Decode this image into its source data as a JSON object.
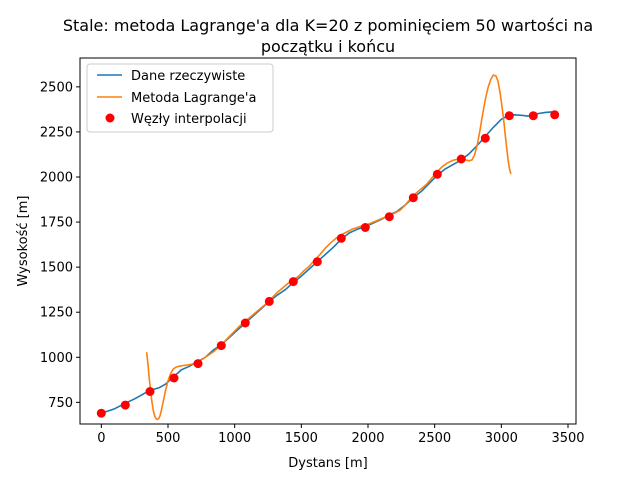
{
  "chart_data": {
    "type": "line",
    "title_line1": "Stale: metoda Lagrange'a dla K=20 z pominięciem 50 wartości na",
    "title_line2": "początku i końcu",
    "xlabel": "Dystans [m]",
    "ylabel": "Wysokość [m]",
    "xlim": [
      -160,
      3560
    ],
    "ylim": [
      630,
      2660
    ],
    "xticks": [
      0,
      500,
      1000,
      1500,
      2000,
      2500,
      3000,
      3500
    ],
    "yticks": [
      750,
      1000,
      1250,
      1500,
      1750,
      2000,
      2250,
      2500
    ],
    "grid": false,
    "legend": "top-left",
    "colors": {
      "real": "#1f77b4",
      "lagrange": "#ff7f0e",
      "nodes": "#ff0000"
    },
    "series": [
      {
        "name": "Dane rzeczywiste",
        "kind": "line",
        "x": [
          0,
          100,
          180,
          250,
          300,
          360,
          430,
          480,
          540,
          600,
          660,
          720,
          780,
          840,
          900,
          960,
          1020,
          1080,
          1140,
          1200,
          1260,
          1320,
          1380,
          1440,
          1500,
          1560,
          1620,
          1680,
          1740,
          1800,
          1860,
          1920,
          1980,
          2040,
          2100,
          2160,
          2220,
          2280,
          2340,
          2400,
          2460,
          2520,
          2580,
          2640,
          2700,
          2760,
          2820,
          2880,
          2940,
          3000,
          3050,
          3100,
          3150,
          3200,
          3230,
          3280,
          3330,
          3400
        ],
        "y": [
          690,
          715,
          745,
          770,
          790,
          815,
          830,
          850,
          890,
          930,
          950,
          975,
          1000,
          1040,
          1070,
          1110,
          1150,
          1190,
          1230,
          1270,
          1310,
          1345,
          1375,
          1415,
          1450,
          1490,
          1530,
          1570,
          1610,
          1655,
          1690,
          1710,
          1725,
          1745,
          1765,
          1790,
          1810,
          1845,
          1885,
          1920,
          1965,
          2010,
          2045,
          2070,
          2095,
          2130,
          2175,
          2225,
          2275,
          2320,
          2340,
          2345,
          2342,
          2338,
          2345,
          2352,
          2358,
          2362
        ]
      },
      {
        "name": "Metoda Lagrange'a",
        "kind": "line",
        "x": [
          340,
          350,
          360,
          370,
          380,
          390,
          400,
          410,
          420,
          430,
          440,
          450,
          460,
          480,
          500,
          520,
          540,
          560,
          580,
          600,
          620,
          650,
          680,
          720,
          760,
          800,
          840,
          880,
          920,
          960,
          1000,
          1040,
          1080,
          1120,
          1160,
          1200,
          1240,
          1280,
          1320,
          1360,
          1400,
          1440,
          1480,
          1520,
          1560,
          1600,
          1640,
          1680,
          1720,
          1760,
          1800,
          1840,
          1880,
          1920,
          1960,
          2000,
          2040,
          2080,
          2120,
          2160,
          2200,
          2240,
          2280,
          2320,
          2360,
          2400,
          2440,
          2480,
          2520,
          2560,
          2600,
          2640,
          2680,
          2700,
          2720,
          2740,
          2760,
          2780,
          2800,
          2820,
          2840,
          2860,
          2880,
          2900,
          2920,
          2940,
          2960,
          2975,
          2990,
          3000,
          3010,
          3020,
          3030,
          3040,
          3050,
          3060,
          3070
        ],
        "y": [
          1025,
          960,
          880,
          810,
          750,
          705,
          675,
          660,
          655,
          660,
          675,
          705,
          740,
          810,
          870,
          910,
          935,
          945,
          950,
          952,
          955,
          958,
          962,
          972,
          990,
          1010,
          1030,
          1055,
          1085,
          1115,
          1145,
          1175,
          1200,
          1225,
          1250,
          1275,
          1300,
          1330,
          1360,
          1385,
          1410,
          1430,
          1450,
          1480,
          1505,
          1540,
          1570,
          1605,
          1635,
          1660,
          1680,
          1695,
          1710,
          1720,
          1730,
          1738,
          1750,
          1762,
          1775,
          1790,
          1800,
          1815,
          1845,
          1880,
          1910,
          1935,
          1960,
          1995,
          2030,
          2060,
          2080,
          2093,
          2100,
          2100,
          2098,
          2093,
          2090,
          2095,
          2125,
          2180,
          2260,
          2350,
          2430,
          2495,
          2540,
          2565,
          2560,
          2530,
          2470,
          2420,
          2360,
          2300,
          2230,
          2160,
          2100,
          2050,
          2020
        ]
      },
      {
        "name": "Węzły interpolacji",
        "kind": "scatter",
        "x": [
          0,
          180,
          365,
          545,
          725,
          900,
          1080,
          1260,
          1440,
          1620,
          1800,
          1980,
          2160,
          2340,
          2520,
          2700,
          2880,
          3060,
          3240,
          3400
        ],
        "y": [
          690,
          735,
          810,
          885,
          965,
          1065,
          1190,
          1310,
          1420,
          1530,
          1660,
          1720,
          1780,
          1885,
          2015,
          2100,
          2215,
          2340,
          2340,
          2345
        ]
      }
    ]
  }
}
